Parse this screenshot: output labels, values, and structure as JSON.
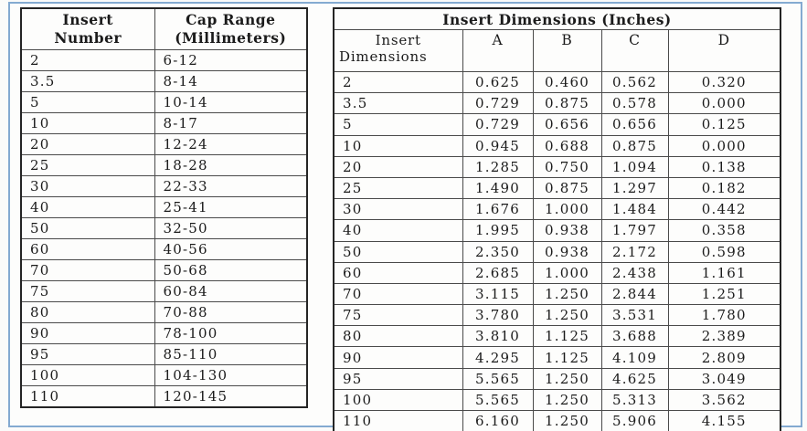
{
  "colors": {
    "frame_border": "#84aad1",
    "grid_line": "#4a4a4a",
    "table_outline": "#242424",
    "text": "#1b1b1b",
    "background": "#fdfdfc"
  },
  "left_table": {
    "headers": [
      {
        "line1": "Insert",
        "line2": "Number"
      },
      {
        "line1": "Cap Range",
        "line2": "(Millimeters)"
      }
    ],
    "rows": [
      [
        "2",
        "6-12"
      ],
      [
        "3.5",
        "8-14"
      ],
      [
        "5",
        "10-14"
      ],
      [
        "10",
        "8-17"
      ],
      [
        "20",
        "12-24"
      ],
      [
        "25",
        "18-28"
      ],
      [
        "30",
        "22-33"
      ],
      [
        "40",
        "25-41"
      ],
      [
        "50",
        "32-50"
      ],
      [
        "60",
        "40-56"
      ],
      [
        "70",
        "50-68"
      ],
      [
        "75",
        "60-84"
      ],
      [
        "80",
        "70-88"
      ],
      [
        "90",
        "78-100"
      ],
      [
        "95",
        "85-110"
      ],
      [
        "100",
        "104-130"
      ],
      [
        "110",
        "120-145"
      ]
    ]
  },
  "right_table": {
    "title": "Insert Dimensions (Inches)",
    "row_header": {
      "line1": "Insert",
      "line2": "Dimensions"
    },
    "column_headers": [
      "A",
      "B",
      "C",
      "D"
    ],
    "rows": [
      [
        "2",
        "0.625",
        "0.460",
        "0.562",
        "0.320"
      ],
      [
        "3.5",
        "0.729",
        "0.875",
        "0.578",
        "0.000"
      ],
      [
        "5",
        "0.729",
        "0.656",
        "0.656",
        "0.125"
      ],
      [
        "10",
        "0.945",
        "0.688",
        "0.875",
        "0.000"
      ],
      [
        "20",
        "1.285",
        "0.750",
        "1.094",
        "0.138"
      ],
      [
        "25",
        "1.490",
        "0.875",
        "1.297",
        "0.182"
      ],
      [
        "30",
        "1.676",
        "1.000",
        "1.484",
        "0.442"
      ],
      [
        "40",
        "1.995",
        "0.938",
        "1.797",
        "0.358"
      ],
      [
        "50",
        "2.350",
        "0.938",
        "2.172",
        "0.598"
      ],
      [
        "60",
        "2.685",
        "1.000",
        "2.438",
        "1.161"
      ],
      [
        "70",
        "3.115",
        "1.250",
        "2.844",
        "1.251"
      ],
      [
        "75",
        "3.780",
        "1.250",
        "3.531",
        "1.780"
      ],
      [
        "80",
        "3.810",
        "1.125",
        "3.688",
        "2.389"
      ],
      [
        "90",
        "4.295",
        "1.125",
        "4.109",
        "2.809"
      ],
      [
        "95",
        "5.565",
        "1.250",
        "4.625",
        "3.049"
      ],
      [
        "100",
        "5.565",
        "1.250",
        "5.313",
        "3.562"
      ],
      [
        "110",
        "6.160",
        "1.250",
        "5.906",
        "4.155"
      ]
    ]
  }
}
